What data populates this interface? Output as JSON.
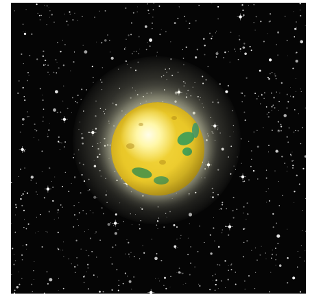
{
  "scene": {
    "subject": "planet",
    "background": "starfield",
    "colors": {
      "space": "#050505",
      "planet": "#e9c728",
      "highlight": "#fffde8",
      "land": "#2f9a5a",
      "halo": "#fffbe6",
      "stars": "#ffffff"
    }
  }
}
